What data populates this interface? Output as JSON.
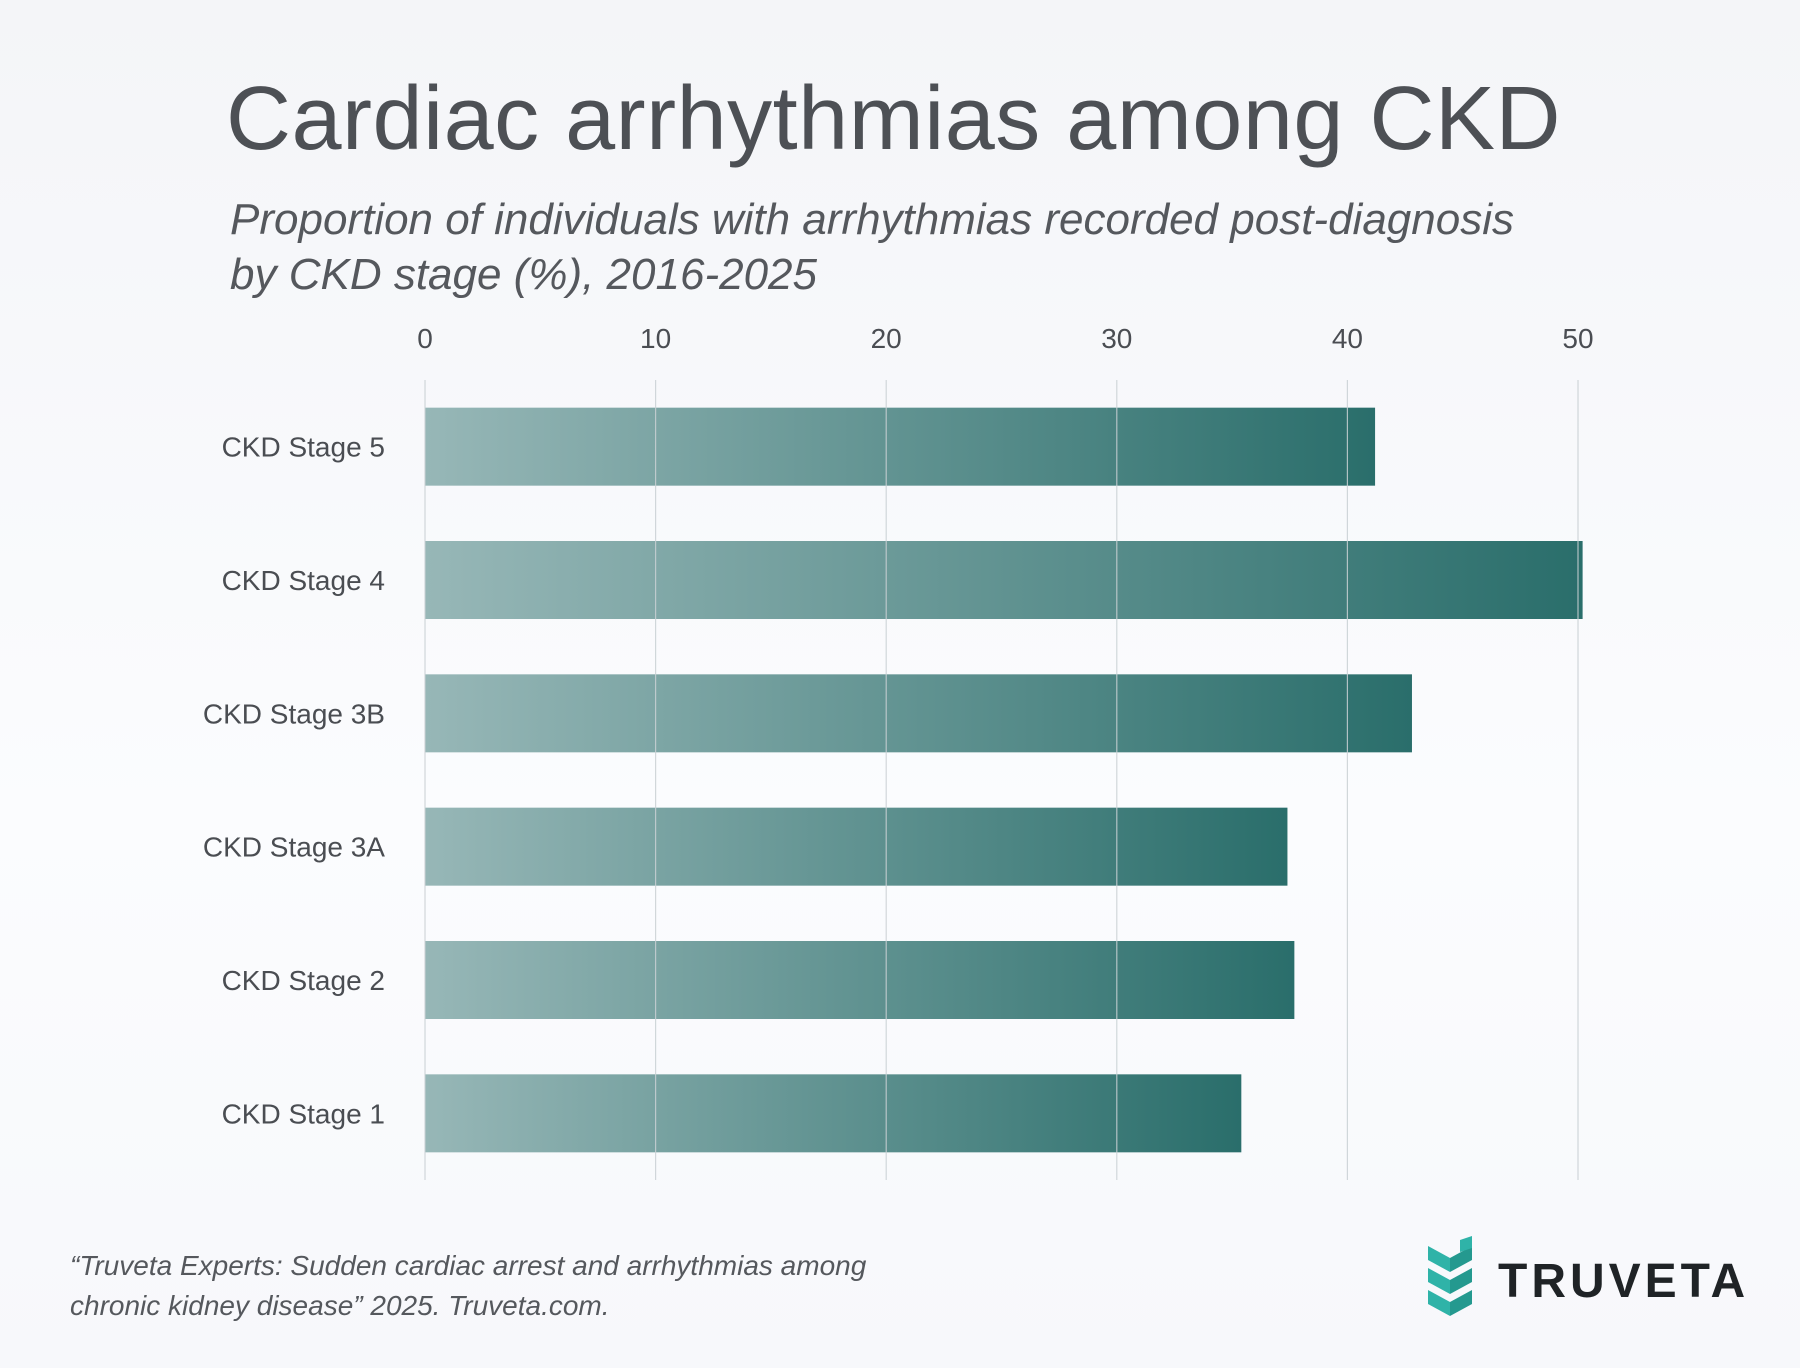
{
  "title": "Cardiac arrhythmias among CKD",
  "subtitle": {
    "line1": "Proportion of individuals with arrhythmias recorded post-diagnosis",
    "line2": "by CKD stage (%), 2016-2025"
  },
  "footer": {
    "line1": "“Truveta Experts: Sudden cardiac arrest and arrhythmias among",
    "line2": "chronic kidney disease” 2025. Truveta.com."
  },
  "logo": {
    "text": "TRUVETA",
    "icon": "truveta-leaf-icon"
  },
  "colors": {
    "bar_start": "#97b7b7",
    "bar_end": "#2a6e6b",
    "grid": "#c9d0d3",
    "tick_text": "#4a4d52",
    "logo_mark": "#2fb3a8"
  },
  "chart_data": {
    "type": "bar",
    "orientation": "horizontal",
    "categories": [
      "CKD Stage 5",
      "CKD Stage 4",
      "CKD Stage 3B",
      "CKD Stage 3A",
      "CKD Stage 2",
      "CKD Stage 1"
    ],
    "values": [
      41.2,
      50.2,
      42.8,
      37.4,
      37.7,
      35.4
    ],
    "xticks": [
      "0",
      "10",
      "20",
      "30",
      "40",
      "50"
    ],
    "xlim": [
      0,
      50
    ],
    "xaxis_position": "top",
    "grid": true,
    "title": "Cardiac arrhythmias among CKD",
    "xlabel": "",
    "ylabel": ""
  }
}
